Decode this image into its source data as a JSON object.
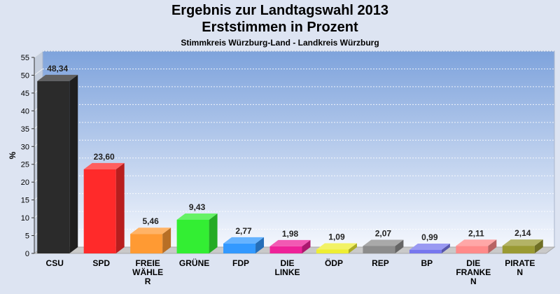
{
  "title": "Ergebnis zur Landtagswahl 2013",
  "subtitle": "Erststimmen in Prozent",
  "subtitle2": "Stimmkreis Würzburg-Land - Landkreis Würzburg",
  "chart_data": {
    "type": "bar",
    "ylabel": "%",
    "ylim": [
      0,
      55
    ],
    "yticks": [
      0,
      5,
      10,
      15,
      20,
      25,
      30,
      35,
      40,
      45,
      50,
      55
    ],
    "grid": true,
    "categories": [
      "CSU",
      "SPD",
      "FREIE WÄHLE R",
      "GRÜNE",
      "FDP",
      "DIE LINKE",
      "ÖDP",
      "REP",
      "BP",
      "DIE FRANKE N",
      "PIRATE N"
    ],
    "category_lines": [
      [
        "CSU"
      ],
      [
        "SPD"
      ],
      [
        "FREIE",
        "WÄHLE",
        "R"
      ],
      [
        "GRÜNE"
      ],
      [
        "FDP"
      ],
      [
        "DIE",
        "LINKE"
      ],
      [
        "ÖDP"
      ],
      [
        "REP"
      ],
      [
        "BP"
      ],
      [
        "DIE",
        "FRANKE",
        "N"
      ],
      [
        "PIRATE",
        "N"
      ]
    ],
    "values": [
      48.34,
      23.6,
      5.46,
      9.43,
      2.77,
      1.98,
      1.09,
      2.07,
      0.99,
      2.11,
      2.14
    ],
    "value_labels": [
      "48,34",
      "23,60",
      "5,46",
      "9,43",
      "2,77",
      "1,98",
      "1,09",
      "2,07",
      "0,99",
      "2,11",
      "2,14"
    ],
    "colors": [
      "#2b2b2b",
      "#ff2a2a",
      "#ff9a33",
      "#33ee33",
      "#3399ff",
      "#ee2299",
      "#eeee33",
      "#8c8c8c",
      "#7777ee",
      "#ff8a8a",
      "#9a9a33"
    ]
  }
}
